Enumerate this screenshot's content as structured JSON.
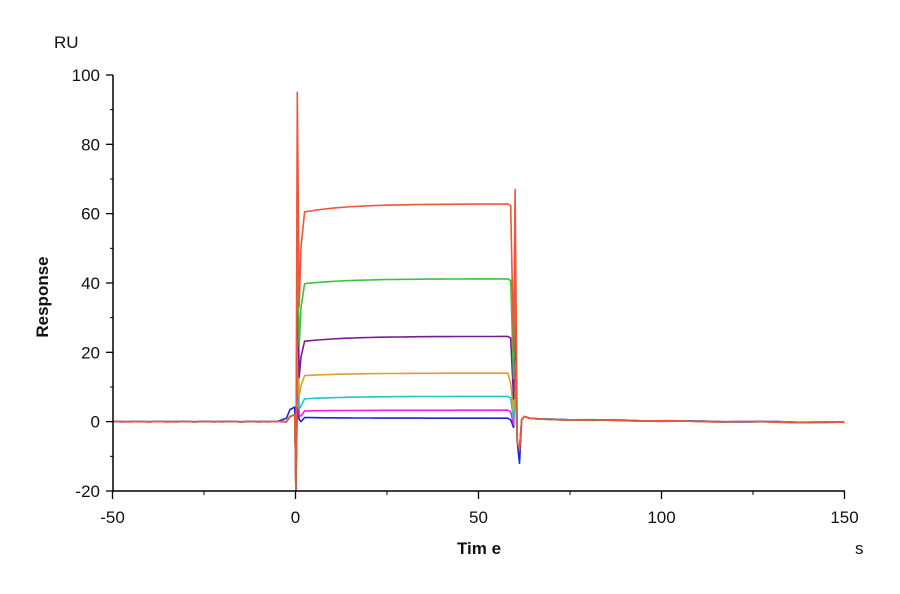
{
  "chart_data": {
    "type": "line",
    "title": "",
    "xlabel": "Time",
    "xunit": "s",
    "ylabel": "Response",
    "yunit": "RU",
    "xlim": [
      -50,
      150
    ],
    "ylim": [
      -20,
      100
    ],
    "xticks": [
      -50,
      0,
      50,
      100,
      150
    ],
    "yticks": [
      -20,
      0,
      20,
      40,
      60,
      80,
      100
    ],
    "grid": false,
    "legend": null,
    "association_start": 0,
    "dissociation_start": 60,
    "series": [
      {
        "name": "red",
        "color": "#f0553a",
        "plateau": 62.8,
        "initial_jump": 60.5,
        "peak_start": 95,
        "peak_end": 67
      },
      {
        "name": "green",
        "color": "#3ec13e",
        "plateau": 41.2,
        "initial_jump": 39.8,
        "peak_start": 55,
        "peak_end": 48
      },
      {
        "name": "purple",
        "color": "#7a1a9a",
        "plateau": 24.6,
        "initial_jump": 23.2,
        "peak_start": 45,
        "peak_end": 32
      },
      {
        "name": "orange",
        "color": "#d9a32a",
        "plateau": 14.0,
        "initial_jump": 13.3,
        "peak_start": 30,
        "peak_end": 15
      },
      {
        "name": "cyan",
        "color": "#1ec6c8",
        "plateau": 7.3,
        "initial_jump": 6.6,
        "peak_start": 20,
        "peak_end": 10
      },
      {
        "name": "magenta",
        "color": "#ee1ee8",
        "plateau": 3.3,
        "initial_jump": 3.1,
        "peak_start": 15,
        "peak_end": 12
      },
      {
        "name": "blue",
        "color": "#1a24d6",
        "plateau": 1.0,
        "initial_jump": 1.2,
        "peak_start": 4,
        "peak_end": 14
      }
    ]
  },
  "labels": {
    "yunit": "RU",
    "xunit": "s",
    "ytitle": "Response",
    "xtitle": "Tim e",
    "xticks": [
      "-50",
      "0",
      "50",
      "100",
      "150"
    ],
    "yticks": [
      "100",
      "80",
      "60",
      "40",
      "20",
      "0",
      "-20"
    ]
  }
}
